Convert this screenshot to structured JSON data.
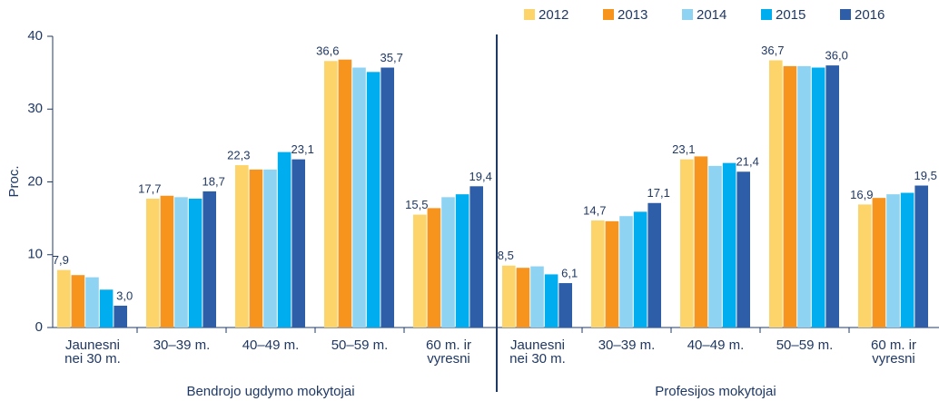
{
  "chart_data": {
    "type": "bar",
    "ylabel": "Proc.",
    "ylim": [
      0,
      40
    ],
    "yticks": [
      0,
      10,
      20,
      30,
      40
    ],
    "groups": [
      "Bendrojo ugdymo mokytojai",
      "Profesijos mokytojai"
    ],
    "categories": [
      "Jaunesni\nnei 30 m.",
      "30–39 m.",
      "40–49 m.",
      "50–59 m.",
      "60 m. ir\nvyresni",
      "Jaunesni\nnei 30 m.",
      "30–39 m.",
      "40–49 m.",
      "50–59 m.",
      "60 m. ir\nvyresni"
    ],
    "legend": "top-right",
    "series": [
      {
        "name": "2012",
        "color": "#fdd469",
        "values": [
          7.9,
          17.7,
          22.3,
          36.6,
          15.5,
          8.5,
          14.7,
          23.1,
          36.7,
          16.9
        ],
        "value_labels": [
          "7,9",
          "17,7",
          "22,3",
          "36,6",
          "15,5",
          "8,5",
          "14,7",
          "23,1",
          "36,7",
          "16,9"
        ]
      },
      {
        "name": "2013",
        "color": "#f7941d",
        "values": [
          7.2,
          18.1,
          21.7,
          36.8,
          16.4,
          8.2,
          14.6,
          23.5,
          35.9,
          17.8
        ]
      },
      {
        "name": "2014",
        "color": "#8fd3f3",
        "values": [
          6.9,
          17.9,
          21.7,
          35.7,
          17.9,
          8.4,
          15.3,
          22.2,
          35.9,
          18.3
        ]
      },
      {
        "name": "2015",
        "color": "#00aeef",
        "values": [
          5.2,
          17.7,
          24.1,
          35.1,
          18.3,
          7.3,
          15.9,
          22.6,
          35.7,
          18.5
        ]
      },
      {
        "name": "2016",
        "color": "#2f5ea8",
        "values": [
          3.0,
          18.7,
          23.1,
          35.7,
          19.4,
          6.1,
          17.1,
          21.4,
          36.0,
          19.5
        ],
        "value_labels": [
          "3,0",
          "18,7",
          "23,1",
          "35,7",
          "19,4",
          "6,1",
          "17,1",
          "21,4",
          "36,0",
          "19,5"
        ]
      }
    ]
  }
}
